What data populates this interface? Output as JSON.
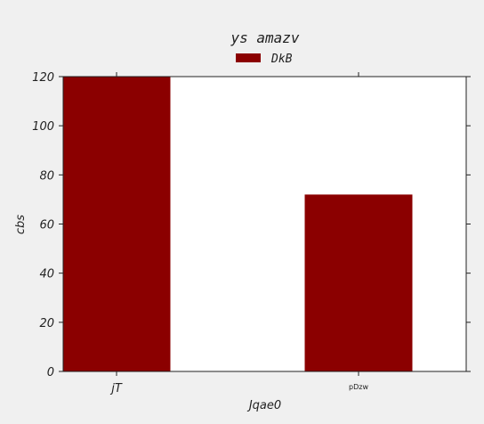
{
  "chart_data": {
    "type": "bar",
    "title": "ys amazv",
    "xlabel": "Jqae0",
    "ylabel": "cbs",
    "categories": [
      "jT",
      "pDzw"
    ],
    "series": [
      {
        "name": "DkB",
        "values": [
          120,
          72
        ],
        "color": "#8b0000"
      }
    ],
    "ylim": [
      0,
      120
    ],
    "yticks": [
      0,
      20,
      40,
      60,
      80,
      100,
      120
    ],
    "grid": false,
    "legend_position": "top-center"
  }
}
